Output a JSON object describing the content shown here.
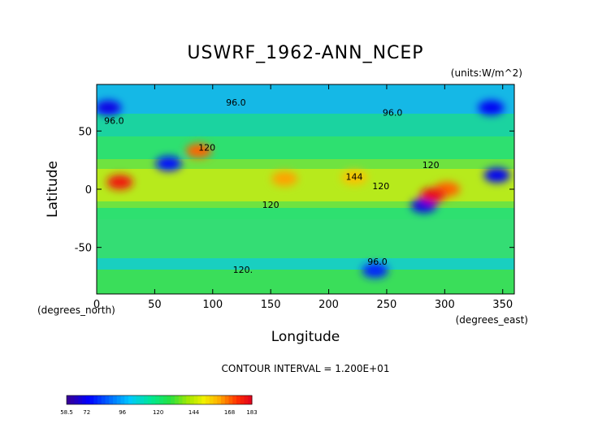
{
  "chart_data": {
    "type": "heatmap",
    "title": "USWRF_1962-ANN_NCEP",
    "units": "(units:W/m^2)",
    "xlabel": "Longitude",
    "ylabel": "Latitude",
    "x_unit": "(degrees_east)",
    "y_unit": "(degrees_north)",
    "xlim": [
      0,
      360
    ],
    "ylim": [
      -90,
      90
    ],
    "x_ticks": [
      0,
      50,
      100,
      150,
      200,
      250,
      300,
      350
    ],
    "y_ticks": [
      50,
      0,
      -50
    ],
    "contour_interval_text": "CONTOUR INTERVAL = 1.200E+01",
    "colorbar": {
      "range": [
        58.5,
        183
      ],
      "tick_labels": [
        "58.5",
        "72",
        "96",
        "120",
        "144",
        "168",
        "183"
      ],
      "tick_values": [
        58.5,
        72,
        96,
        120,
        144,
        168,
        183
      ]
    },
    "contour_labels": [
      {
        "text": "96.0",
        "lon": 120,
        "lat": 72
      },
      {
        "text": "96.0",
        "lon": 15,
        "lat": 56
      },
      {
        "text": "96.0",
        "lon": 255,
        "lat": 63
      },
      {
        "text": "120",
        "lon": 95,
        "lat": 33
      },
      {
        "text": "144",
        "lon": 222,
        "lat": 8
      },
      {
        "text": "120",
        "lon": 288,
        "lat": 18
      },
      {
        "text": "120",
        "lon": 245,
        "lat": 0
      },
      {
        "text": "120",
        "lon": 150,
        "lat": -16
      },
      {
        "text": "96.0",
        "lon": 242,
        "lat": -65
      },
      {
        "text": "120.",
        "lon": 126,
        "lat": -72
      }
    ],
    "features": [
      {
        "lon": 20,
        "lat": 6,
        "value": 178
      },
      {
        "lon": 62,
        "lat": 22,
        "value": 75
      },
      {
        "lon": 88,
        "lat": 33,
        "value": 168
      },
      {
        "lon": 162,
        "lat": 9,
        "value": 162
      },
      {
        "lon": 222,
        "lat": 10,
        "value": 158
      },
      {
        "lon": 302,
        "lat": 0,
        "value": 168
      },
      {
        "lon": 282,
        "lat": -14,
        "value": 70
      },
      {
        "lon": 345,
        "lat": 12,
        "value": 72
      },
      {
        "lon": 10,
        "lat": 70,
        "value": 70
      },
      {
        "lon": 340,
        "lat": 70,
        "value": 72
      },
      {
        "lon": 240,
        "lat": -70,
        "value": 78
      },
      {
        "lon": 290,
        "lat": -5,
        "value": 180
      }
    ]
  }
}
